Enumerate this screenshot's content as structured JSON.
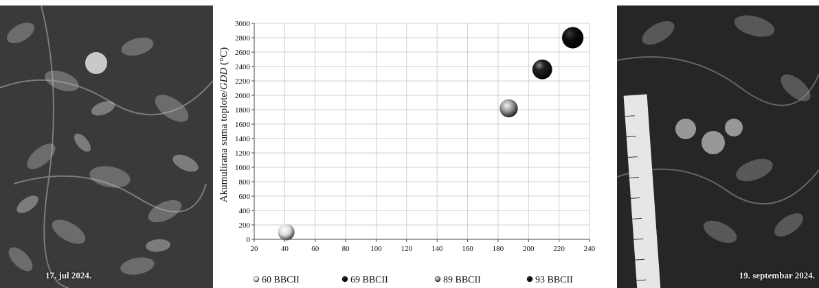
{
  "photos": {
    "left_caption": "17. jul 2024.",
    "right_caption": "19. septembar 2024."
  },
  "chart_data": {
    "type": "scatter",
    "ylabel_plain": "Akumulirana suma toplote/",
    "ylabel_italic": "GDD",
    "ylabel_unit": " (°C)",
    "xlim": [
      20,
      240
    ],
    "ylim": [
      0,
      3000
    ],
    "xticks": [
      20,
      40,
      60,
      80,
      100,
      120,
      140,
      160,
      180,
      200,
      220,
      240
    ],
    "yticks": [
      0,
      200,
      400,
      600,
      800,
      1000,
      1200,
      1400,
      1600,
      1800,
      2000,
      2200,
      2400,
      2600,
      2800,
      3000
    ],
    "grid": true,
    "legend_position": "bottom",
    "series": [
      {
        "name": "60 BBCH",
        "x": 41,
        "y": 100,
        "style": "white-shaded",
        "size": 1
      },
      {
        "name": "69 BBCH",
        "x": 187,
        "y": 1820,
        "style": "light-shaded",
        "size": 1.1
      },
      {
        "name": "89 BBCH",
        "x": 209,
        "y": 2360,
        "style": "dark-shaded",
        "size": 1.2
      },
      {
        "name": "93 BBCH",
        "x": 229,
        "y": 2800,
        "style": "black",
        "size": 1.3
      }
    ],
    "legend": [
      "60 BBCII",
      "69 BBCII",
      "89 BBCII",
      "93 BBCII"
    ]
  }
}
